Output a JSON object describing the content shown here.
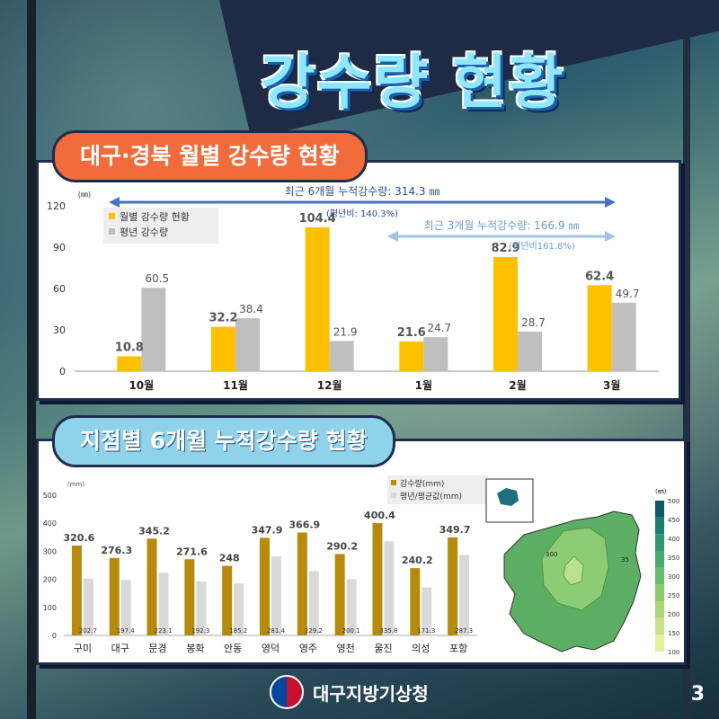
{
  "title": "강수량 현황",
  "section1": {
    "title": "대구·경북 월별 강수량 현황"
  },
  "section2": {
    "title": "지점별 6개월 누적강수량 현황"
  },
  "footer": {
    "org": "대구지방기상청",
    "page": "3"
  },
  "colors": {
    "bar_main": "#ffc000",
    "bar_normal": "#bfbfbf",
    "bar_gold": "#b88a0c",
    "bar_light": "#d9d9d9",
    "accent_orange": "#f26c3b",
    "accent_blue": "#8fd3ea"
  },
  "chart_data": [
    {
      "type": "bar",
      "categories": [
        "10월",
        "11월",
        "12월",
        "1월",
        "2월",
        "3월"
      ],
      "series": [
        {
          "name": "월별 강수량 현황",
          "values": [
            10.8,
            32.2,
            104.4,
            21.6,
            82.9,
            62.4
          ]
        },
        {
          "name": "평년 강수량",
          "values": [
            60.5,
            38.4,
            21.9,
            24.7,
            28.7,
            49.7
          ]
        }
      ],
      "ylim": [
        0,
        120
      ],
      "yticks": [
        0,
        30,
        60,
        90,
        120
      ],
      "unit": "(㎜)",
      "legend_position": "top-left",
      "annotations": [
        {
          "text": "최근 6개월 누적강수량: 314.3 ㎜",
          "note": "(평년비: 140.3%)"
        },
        {
          "text": "최근 3개월 누적강수량: 166.9 ㎜",
          "note": "(평년비161.8%)"
        }
      ]
    },
    {
      "type": "bar",
      "categories": [
        "구미",
        "대구",
        "문경",
        "봉화",
        "안동",
        "영덕",
        "영주",
        "영천",
        "울진",
        "의성",
        "포항"
      ],
      "series": [
        {
          "name": "강수량(mm)",
          "values": [
            320.6,
            276.3,
            345.2,
            271.6,
            248,
            347.9,
            366.9,
            290.2,
            400.4,
            240.2,
            349.7
          ]
        },
        {
          "name": "평년/평균값(mm)",
          "values": [
            202.7,
            197.4,
            223.1,
            192.3,
            185.2,
            281.4,
            229.2,
            200.1,
            335.8,
            171.3,
            287.3
          ]
        }
      ],
      "ylim": [
        0,
        500
      ],
      "yticks": [
        0,
        100,
        200,
        300,
        400,
        500
      ],
      "unit": "(mm)",
      "legend_position": "top-right"
    }
  ],
  "map": {
    "contour_labels": [
      "300",
      "35"
    ],
    "unit": "(㎜)",
    "scale_ticks": [
      "500",
      "450",
      "400",
      "350",
      "300",
      "250",
      "200",
      "150",
      "100"
    ],
    "scale_colors": [
      "#0b5a6b",
      "#17806f",
      "#2b9a72",
      "#46ac6f",
      "#68bd6b",
      "#8acb6c",
      "#abd877",
      "#c9e487",
      "#e6f09d"
    ]
  }
}
